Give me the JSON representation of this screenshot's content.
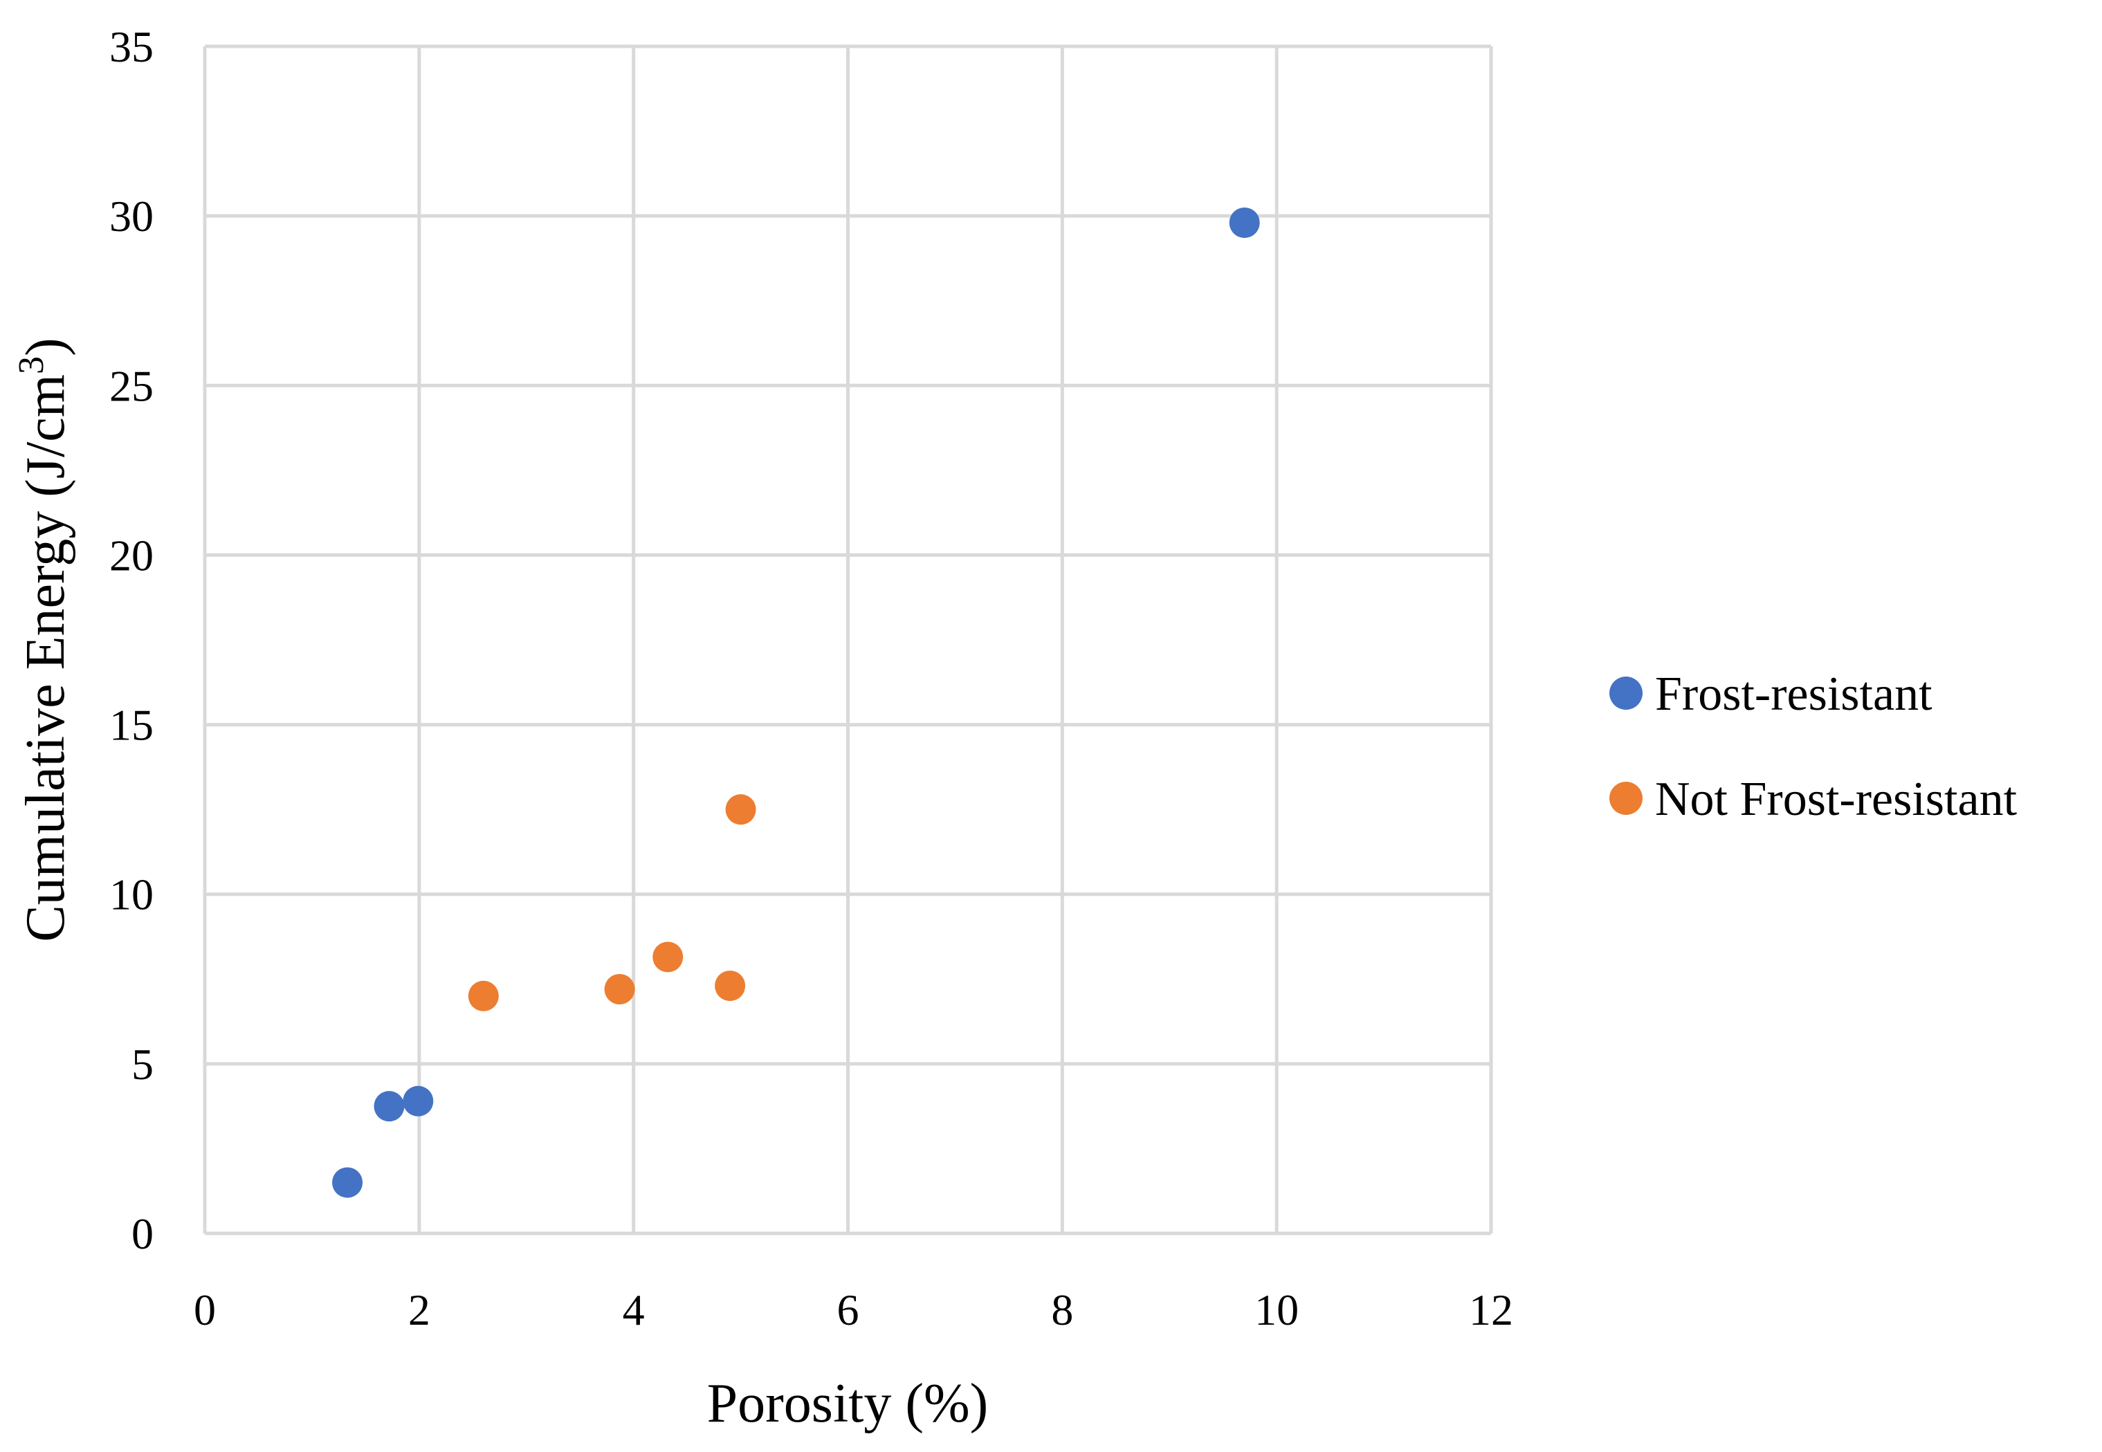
{
  "chart_data": {
    "type": "scatter",
    "title": "",
    "xlabel": "Porosity (%)",
    "ylabel_main": "Cumulative Energy (J/cm",
    "ylabel_sup": "3",
    "ylabel_close": ")",
    "xlim": [
      0,
      12
    ],
    "ylim": [
      0,
      35
    ],
    "xticks": [
      0,
      2,
      4,
      6,
      8,
      10,
      12
    ],
    "yticks": [
      0,
      5,
      10,
      15,
      20,
      25,
      30,
      35
    ],
    "grid": true,
    "legend_position": "right",
    "series": [
      {
        "name": "Frost-resistant",
        "color": "#4472c4",
        "points": [
          {
            "x": 1.33,
            "y": 1.5
          },
          {
            "x": 1.72,
            "y": 3.75
          },
          {
            "x": 1.99,
            "y": 3.9
          },
          {
            "x": 9.7,
            "y": 29.8
          }
        ]
      },
      {
        "name": "Not Frost-resistant",
        "color": "#ed7d31",
        "points": [
          {
            "x": 2.6,
            "y": 7.0
          },
          {
            "x": 3.87,
            "y": 7.2
          },
          {
            "x": 4.32,
            "y": 8.15
          },
          {
            "x": 4.9,
            "y": 7.3
          },
          {
            "x": 5.0,
            "y": 12.5
          }
        ]
      }
    ]
  }
}
